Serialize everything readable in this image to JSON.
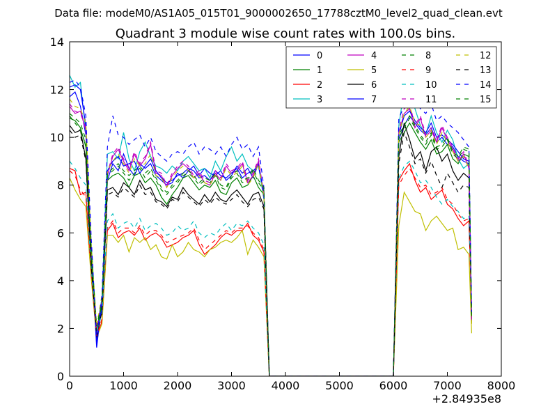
{
  "chart_data": {
    "type": "line",
    "suptitle": "Data file: modeM0/AS1A05_015T01_9000002650_17788cztM0_level2_quad_clean.evt",
    "title": "Quadrant 3 module wise count rates with 100.0s bins.",
    "xlabel": "",
    "ylabel": "",
    "x_offset_label": "+2.84935e8",
    "xlim": [
      0,
      8000
    ],
    "ylim": [
      0,
      14
    ],
    "x_ticks": [
      0,
      1000,
      2000,
      3000,
      4000,
      5000,
      6000,
      7000,
      8000
    ],
    "y_ticks": [
      0,
      2,
      4,
      6,
      8,
      10,
      12,
      14
    ],
    "grid": false,
    "legend": {
      "placement": "top-right",
      "columns": 4
    },
    "x": [
      0,
      100,
      200,
      300,
      400,
      500,
      600,
      700,
      800,
      900,
      1000,
      1100,
      1200,
      1300,
      1400,
      1500,
      1600,
      1700,
      1800,
      1900,
      2000,
      2100,
      2200,
      2300,
      2400,
      2500,
      2600,
      2700,
      2800,
      2900,
      3000,
      3100,
      3200,
      3300,
      3400,
      3500,
      3600,
      3700,
      3800,
      6000,
      6100,
      6200,
      6300,
      6400,
      6500,
      6600,
      6700,
      6800,
      6900,
      7000,
      7100,
      7200,
      7300,
      7400,
      7450
    ],
    "series": [
      {
        "name": "0",
        "color": "#0000ff",
        "dash": "solid",
        "values": [
          11.7,
          11.9,
          11.3,
          10.1,
          5.4,
          1.2,
          3.1,
          8.2,
          8.9,
          8.6,
          9.3,
          8.7,
          8.4,
          8.9,
          8.7,
          8.9,
          8.4,
          8.2,
          8.0,
          8.1,
          8.5,
          8.3,
          8.6,
          8.8,
          8.4,
          8.7,
          8.5,
          8.4,
          8.6,
          8.2,
          8.4,
          8.8,
          8.5,
          8.7,
          8.3,
          8.9,
          7.6,
          0,
          0,
          0,
          9.9,
          10.5,
          10.9,
          10.6,
          10.3,
          10.1,
          10.4,
          9.8,
          10.0,
          9.7,
          9.6,
          9.2,
          9.0,
          8.9,
          2.4
        ]
      },
      {
        "name": "1",
        "color": "#008000",
        "dash": "solid",
        "values": [
          10.8,
          10.7,
          10.4,
          9.6,
          4.9,
          1.9,
          2.9,
          8.2,
          8.4,
          8.5,
          8.3,
          7.9,
          8.4,
          8.5,
          8.1,
          8.3,
          8.0,
          7.5,
          7.2,
          7.6,
          7.9,
          8.3,
          8.4,
          8.1,
          7.8,
          8.0,
          7.9,
          8.2,
          7.7,
          7.6,
          8.1,
          8.3,
          7.9,
          8.0,
          8.4,
          7.9,
          7.6,
          0,
          0,
          0,
          9.8,
          10.2,
          10.6,
          10.2,
          9.8,
          9.5,
          9.9,
          9.3,
          9.4,
          9.7,
          9.1,
          8.9,
          9.3,
          9.2,
          2.3
        ]
      },
      {
        "name": "2",
        "color": "#ff0000",
        "dash": "solid",
        "values": [
          8.7,
          8.6,
          7.6,
          7.7,
          4.2,
          1.6,
          2.3,
          6.1,
          6.4,
          5.8,
          6.0,
          6.1,
          5.9,
          6.2,
          5.7,
          5.9,
          6.0,
          5.8,
          5.4,
          5.5,
          5.6,
          5.8,
          5.9,
          6.1,
          5.5,
          5.1,
          5.3,
          5.5,
          5.8,
          6.0,
          5.9,
          6.1,
          6.1,
          6.4,
          5.9,
          5.7,
          5.2,
          0,
          0,
          0,
          8.2,
          8.6,
          8.9,
          8.2,
          7.7,
          7.9,
          7.4,
          7.6,
          7.8,
          7.2,
          7.0,
          6.6,
          6.3,
          6.5,
          2.6
        ]
      },
      {
        "name": "3",
        "color": "#00bfbf",
        "dash": "solid",
        "values": [
          12.6,
          12.1,
          12.3,
          10.2,
          5.6,
          1.9,
          3.3,
          9.3,
          9.4,
          9.1,
          10.2,
          9.1,
          8.6,
          9.4,
          9.8,
          9.2,
          8.8,
          8.7,
          8.5,
          8.8,
          8.6,
          9.0,
          9.2,
          8.9,
          8.6,
          8.7,
          8.3,
          9.0,
          8.6,
          9.2,
          9.6,
          9.0,
          9.3,
          8.8,
          8.6,
          8.8,
          7.4,
          0,
          0,
          0,
          10.5,
          12.0,
          12.7,
          11.2,
          10.5,
          10.1,
          10.9,
          10.2,
          9.8,
          10.3,
          9.9,
          9.1,
          8.7,
          8.9,
          2.3
        ]
      },
      {
        "name": "4",
        "color": "#bf00bf",
        "dash": "solid",
        "values": [
          11.3,
          11.0,
          11.1,
          10.3,
          5.3,
          1.9,
          3.2,
          8.4,
          9.2,
          9.5,
          9.0,
          8.6,
          9.3,
          8.8,
          9.1,
          9.7,
          8.5,
          8.4,
          7.9,
          8.4,
          8.7,
          8.9,
          8.7,
          8.3,
          8.5,
          8.1,
          8.0,
          8.5,
          8.2,
          8.8,
          8.5,
          8.6,
          8.9,
          8.1,
          8.4,
          9.0,
          7.5,
          0,
          0,
          0,
          10.2,
          11.0,
          11.2,
          10.4,
          10.8,
          10.0,
          10.3,
          9.8,
          10.4,
          9.9,
          9.5,
          9.0,
          9.3,
          8.7,
          2.2
        ]
      },
      {
        "name": "5",
        "color": "#bfbf00",
        "dash": "solid",
        "values": [
          8.3,
          7.8,
          7.4,
          7.1,
          4.1,
          1.6,
          2.2,
          5.9,
          5.9,
          5.6,
          5.9,
          5.2,
          5.8,
          5.6,
          5.8,
          5.3,
          5.5,
          5.0,
          4.9,
          5.5,
          5.0,
          5.2,
          5.6,
          5.3,
          5.2,
          5.0,
          5.3,
          5.4,
          5.6,
          5.7,
          5.6,
          5.8,
          6.1,
          5.1,
          5.7,
          5.4,
          5.0,
          0,
          0,
          0,
          6.3,
          7.7,
          7.3,
          6.9,
          6.8,
          6.1,
          6.5,
          6.7,
          6.4,
          6.1,
          6.2,
          5.3,
          5.4,
          5.1,
          1.8
        ]
      },
      {
        "name": "6",
        "color": "#000000",
        "dash": "solid",
        "values": [
          10.5,
          10.2,
          10.3,
          9.1,
          4.7,
          1.6,
          2.8,
          7.8,
          7.9,
          7.6,
          8.1,
          7.9,
          7.6,
          8.2,
          7.8,
          7.9,
          7.4,
          7.3,
          7.1,
          7.5,
          7.4,
          7.9,
          7.6,
          7.4,
          7.2,
          7.6,
          7.3,
          7.7,
          7.4,
          7.3,
          7.6,
          7.8,
          7.5,
          7.2,
          7.6,
          7.7,
          7.1,
          0,
          0,
          0,
          9.2,
          10.6,
          9.9,
          9.1,
          9.4,
          8.6,
          9.4,
          9.6,
          9.0,
          9.3,
          8.6,
          8.2,
          8.5,
          8.3,
          2.6
        ]
      },
      {
        "name": "7",
        "color": "#0000ff",
        "dash": "solid",
        "values": [
          12.1,
          12.2,
          12.0,
          10.5,
          5.5,
          1.3,
          3.0,
          8.6,
          9.0,
          9.2,
          8.8,
          8.9,
          9.0,
          8.5,
          8.8,
          9.1,
          8.6,
          8.3,
          8.1,
          8.2,
          8.4,
          8.5,
          8.7,
          8.6,
          8.3,
          8.4,
          8.2,
          8.6,
          8.4,
          8.3,
          8.5,
          8.7,
          8.3,
          8.5,
          8.6,
          8.8,
          7.7,
          0,
          0,
          0,
          10.1,
          10.9,
          11.1,
          10.7,
          10.4,
          10.2,
          10.6,
          10.0,
          10.1,
          9.9,
          9.7,
          9.4,
          9.1,
          9.0,
          2.5
        ]
      },
      {
        "name": "8",
        "color": "#008000",
        "dash": "dashed",
        "values": [
          10.9,
          10.6,
          10.3,
          9.7,
          5.0,
          2.0,
          3.0,
          8.4,
          8.6,
          8.8,
          8.5,
          8.2,
          8.5,
          8.7,
          8.3,
          8.6,
          8.2,
          7.8,
          7.6,
          7.9,
          8.1,
          8.4,
          8.5,
          8.3,
          8.0,
          8.2,
          8.1,
          8.4,
          7.9,
          7.8,
          8.3,
          8.5,
          8.1,
          8.2,
          8.6,
          8.1,
          7.8,
          0,
          0,
          0,
          10.0,
          10.4,
          10.8,
          10.4,
          10.0,
          9.7,
          10.1,
          9.5,
          9.6,
          9.9,
          9.3,
          9.1,
          9.5,
          9.4,
          2.4
        ]
      },
      {
        "name": "9",
        "color": "#ff0000",
        "dash": "dashed",
        "values": [
          8.6,
          8.4,
          7.8,
          7.5,
          4.3,
          1.7,
          2.4,
          6.2,
          6.5,
          6.0,
          6.2,
          6.2,
          6.0,
          6.3,
          5.9,
          6.1,
          6.1,
          5.9,
          5.6,
          5.7,
          5.8,
          5.9,
          6.0,
          6.2,
          5.7,
          5.3,
          5.5,
          5.7,
          5.9,
          6.1,
          6.0,
          6.2,
          6.2,
          6.3,
          6.0,
          5.8,
          5.3,
          0,
          0,
          0,
          8.0,
          8.4,
          8.7,
          8.3,
          7.9,
          8.0,
          7.6,
          7.7,
          7.9,
          7.4,
          7.2,
          6.8,
          6.5,
          6.6,
          2.7
        ]
      },
      {
        "name": "10",
        "color": "#00bfbf",
        "dash": "dashed",
        "values": [
          9.0,
          8.7,
          8.3,
          8.0,
          4.5,
          1.9,
          2.6,
          6.5,
          6.8,
          6.2,
          6.4,
          6.5,
          6.2,
          6.6,
          6.1,
          6.3,
          6.4,
          6.2,
          5.9,
          6.0,
          6.3,
          6.1,
          6.2,
          6.5,
          6.0,
          5.8,
          6.0,
          5.9,
          6.2,
          6.4,
          6.1,
          6.4,
          6.3,
          6.5,
          6.2,
          6.0,
          5.5,
          0,
          0,
          0,
          8.3,
          8.8,
          9.0,
          8.6,
          8.1,
          8.2,
          7.9,
          7.5,
          7.2,
          7.4,
          7.1,
          6.9,
          6.6,
          6.7,
          2.8
        ]
      },
      {
        "name": "11",
        "color": "#bf00bf",
        "dash": "dashed",
        "values": [
          11.4,
          11.1,
          11.0,
          10.4,
          5.4,
          2.0,
          3.3,
          8.5,
          9.3,
          9.6,
          9.1,
          8.7,
          9.4,
          8.9,
          9.2,
          9.8,
          8.6,
          8.5,
          8.0,
          8.5,
          8.8,
          9.0,
          8.8,
          8.4,
          8.6,
          8.2,
          8.1,
          8.6,
          8.3,
          8.9,
          8.6,
          8.7,
          9.0,
          8.2,
          8.5,
          9.1,
          7.6,
          0,
          0,
          0,
          10.3,
          11.2,
          11.4,
          10.5,
          10.9,
          10.1,
          10.4,
          9.9,
          10.5,
          10.0,
          9.6,
          9.1,
          9.4,
          8.8,
          2.3
        ]
      },
      {
        "name": "12",
        "color": "#bfbf00",
        "dash": "dashed",
        "values": [
          11.6,
          11.3,
          11.2,
          10.6,
          5.5,
          2.1,
          3.4,
          8.6,
          9.0,
          9.3,
          8.9,
          8.5,
          9.1,
          8.8,
          8.9,
          9.3,
          8.4,
          8.3,
          7.9,
          8.3,
          8.6,
          8.8,
          8.6,
          8.3,
          8.4,
          8.1,
          8.0,
          8.4,
          8.2,
          8.7,
          8.4,
          8.5,
          8.8,
          8.0,
          8.3,
          8.9,
          7.5,
          0,
          0,
          0,
          10.1,
          11.0,
          11.3,
          10.6,
          10.5,
          10.0,
          10.3,
          9.7,
          10.2,
          9.8,
          9.4,
          9.0,
          9.2,
          8.7,
          2.2
        ]
      },
      {
        "name": "13",
        "color": "#000000",
        "dash": "dashed",
        "values": [
          10.3,
          10.0,
          10.1,
          9.0,
          4.6,
          1.7,
          2.7,
          7.6,
          7.7,
          7.5,
          7.9,
          7.7,
          7.5,
          8.0,
          7.6,
          7.7,
          7.3,
          7.2,
          7.0,
          7.4,
          7.3,
          7.7,
          7.5,
          7.3,
          7.1,
          7.4,
          7.2,
          7.5,
          7.3,
          7.2,
          7.4,
          7.6,
          7.3,
          7.1,
          7.4,
          7.5,
          7.0,
          0,
          0,
          0,
          8.9,
          10.2,
          9.6,
          8.9,
          9.1,
          8.5,
          9.0,
          8.4,
          7.9,
          8.5,
          8.1,
          7.7,
          8.0,
          7.9,
          2.5
        ]
      },
      {
        "name": "14",
        "color": "#0000ff",
        "dash": "dashed",
        "values": [
          12.3,
          12.4,
          12.1,
          10.9,
          5.8,
          1.5,
          3.4,
          9.6,
          10.9,
          10.1,
          10.0,
          9.7,
          9.9,
          10.1,
          9.6,
          10.0,
          9.4,
          9.2,
          9.0,
          9.3,
          9.4,
          9.3,
          9.6,
          9.8,
          9.3,
          9.6,
          9.5,
          9.3,
          9.6,
          9.2,
          9.7,
          10.0,
          9.5,
          9.7,
          9.2,
          9.6,
          7.9,
          0,
          0,
          0,
          10.8,
          11.3,
          11.7,
          11.5,
          11.2,
          11.0,
          11.4,
          10.7,
          10.9,
          10.6,
          10.4,
          10.2,
          9.9,
          9.6,
          2.6
        ]
      },
      {
        "name": "15",
        "color": "#008000",
        "dash": "dashed",
        "values": [
          11.0,
          10.8,
          10.6,
          9.9,
          5.2,
          2.1,
          3.1,
          8.5,
          8.7,
          8.9,
          8.6,
          8.4,
          8.6,
          8.8,
          8.5,
          8.7,
          8.3,
          7.9,
          7.7,
          8.0,
          8.2,
          8.5,
          8.6,
          8.4,
          8.1,
          8.3,
          8.2,
          8.5,
          8.0,
          7.9,
          8.4,
          8.6,
          8.2,
          8.3,
          8.7,
          8.2,
          7.9,
          0,
          0,
          0,
          10.1,
          10.5,
          10.9,
          10.5,
          10.1,
          9.8,
          10.2,
          9.6,
          9.7,
          10.0,
          9.4,
          9.2,
          9.6,
          9.5,
          2.5
        ]
      }
    ]
  }
}
